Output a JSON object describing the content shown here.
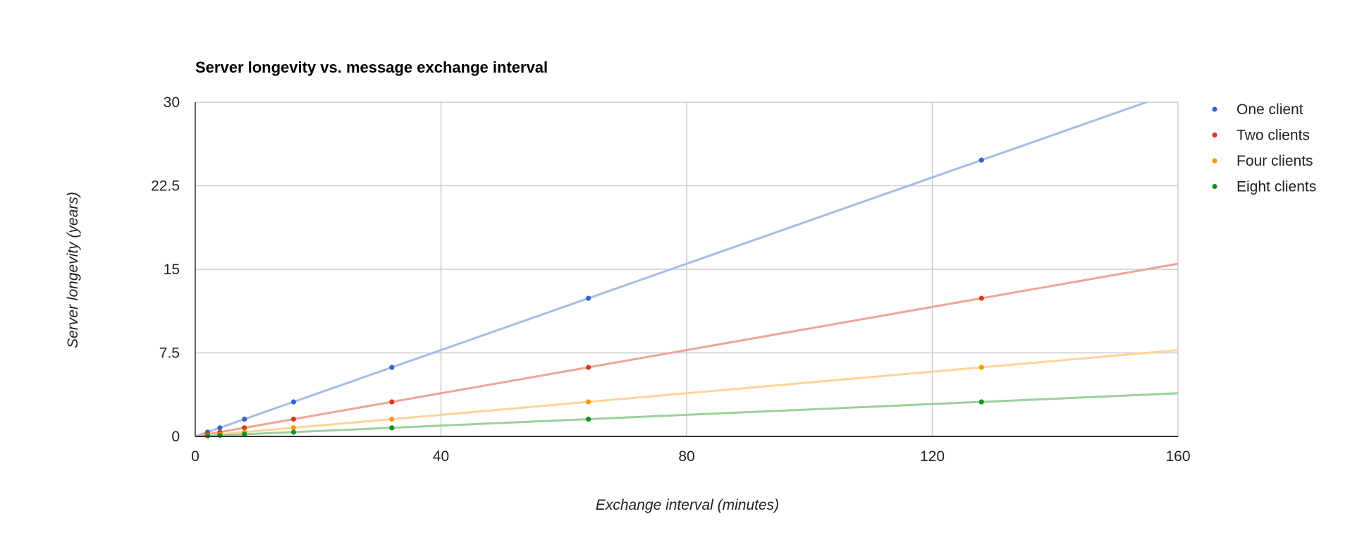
{
  "chart_data": {
    "type": "line",
    "title": "Server longevity vs. message exchange interval",
    "xlabel": "Exchange interval (minutes)",
    "ylabel": "Server longevity (years)",
    "xlim": [
      0,
      160
    ],
    "ylim": [
      0,
      30
    ],
    "x_ticks": [
      "0",
      "40",
      "80",
      "120",
      "160"
    ],
    "y_ticks": [
      "0",
      "7.5",
      "15",
      "22.5",
      "30"
    ],
    "grid": true,
    "legend_position": "right",
    "x": [
      2,
      4,
      8,
      16,
      32,
      64,
      128
    ],
    "series": [
      {
        "name": "One client",
        "color": "#3366cc",
        "line_color": "#a7bde6",
        "values": [
          0.38,
          0.77,
          1.55,
          3.1,
          6.2,
          12.4,
          24.8
        ]
      },
      {
        "name": "Two clients",
        "color": "#dc3912",
        "line_color": "#eea595",
        "values": [
          0.19,
          0.38,
          0.77,
          1.55,
          3.1,
          6.2,
          12.4
        ]
      },
      {
        "name": "Four clients",
        "color": "#ff9900",
        "line_color": "#ffd498",
        "values": [
          0.1,
          0.19,
          0.38,
          0.77,
          1.55,
          3.1,
          6.2
        ]
      },
      {
        "name": "Eight clients",
        "color": "#109618",
        "line_color": "#9cd09f",
        "values": [
          0.05,
          0.1,
          0.19,
          0.38,
          0.77,
          1.55,
          3.1
        ]
      }
    ]
  }
}
